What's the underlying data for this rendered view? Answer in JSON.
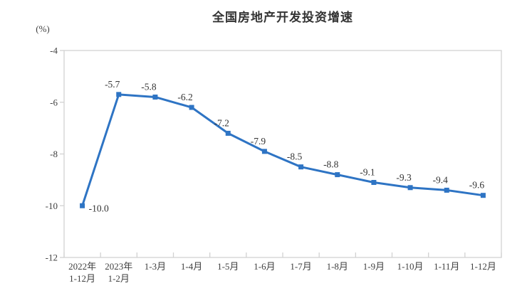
{
  "chart": {
    "title": "全国房地产开发投资增速",
    "unit_label": "(%)"
  },
  "colors": {
    "line": "#2E74C4",
    "axis": "#D2D2D2",
    "tick_text": "#404040",
    "label_text": "#333333",
    "title_text": "#333333",
    "background": "#FFFFFF"
  },
  "chart_data": {
    "type": "line",
    "title": "全国房地产开发投资增速",
    "ylabel": "(%)",
    "xlabel": "",
    "series_name": "全国房地产开发投资增速",
    "categories": [
      "2022年 1-12月",
      "2023年 1-2月",
      "1-3月",
      "1-4月",
      "1-5月",
      "1-6月",
      "1-7月",
      "1-8月",
      "1-9月",
      "1-10月",
      "1-11月",
      "1-12月"
    ],
    "category_lines": [
      [
        "2022年",
        "1-12月"
      ],
      [
        "2023年",
        "1-2月"
      ],
      [
        "1-3月"
      ],
      [
        "1-4月"
      ],
      [
        "1-5月"
      ],
      [
        "1-6月"
      ],
      [
        "1-7月"
      ],
      [
        "1-8月"
      ],
      [
        "1-9月"
      ],
      [
        "1-10月"
      ],
      [
        "1-11月"
      ],
      [
        "1-12月"
      ]
    ],
    "values": [
      -10.0,
      -5.7,
      -5.8,
      -6.2,
      -7.2,
      -7.9,
      -8.5,
      -8.8,
      -9.1,
      -9.3,
      -9.4,
      -9.6
    ],
    "data_labels": [
      "-10.0",
      "-5.7",
      "-5.8",
      "-6.2",
      "-7.2",
      "-7.9",
      "-8.5",
      "-8.8",
      "-9.1",
      "-9.3",
      "-9.4",
      "-9.6"
    ],
    "ylim": [
      -12,
      -4
    ],
    "yticks": [
      -4,
      -6,
      -8,
      -10,
      -12
    ],
    "grid": false,
    "legend": "none",
    "marker": "square"
  }
}
